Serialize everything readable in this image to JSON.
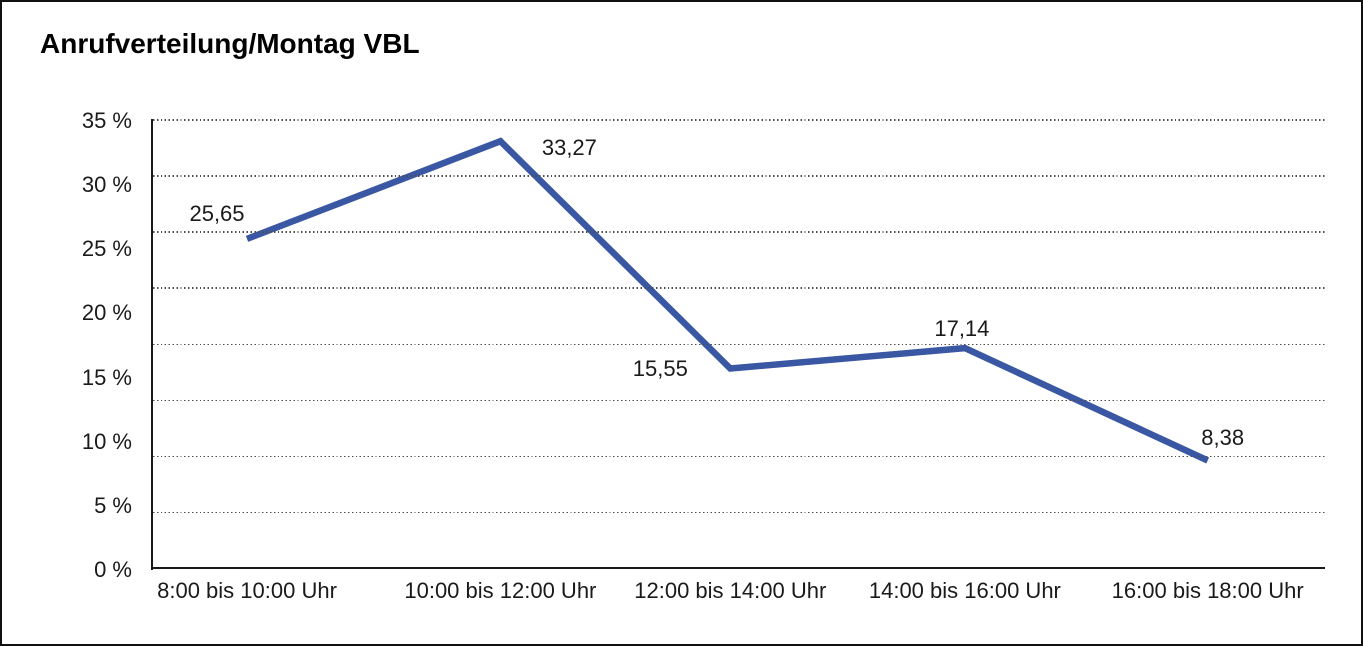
{
  "title": "Anrufverteilung/Montag VBL",
  "colors": {
    "line": "#3a57a3",
    "grid_dots": "#4d4d4d",
    "axis": "#1a1a1a",
    "text": "#000000",
    "background": "#ffffff"
  },
  "chart_data": {
    "type": "line",
    "title": "Anrufverteilung/Montag VBL",
    "categories": [
      "8:00 bis 10:00 Uhr",
      "10:00 bis 12:00 Uhr",
      "12:00 bis 14:00 Uhr",
      "14:00 bis 16:00 Uhr",
      "16:00 bis 18:00 Uhr"
    ],
    "series": [
      {
        "name": "Anrufverteilung Montag VBL",
        "values": [
          25.65,
          33.27,
          15.55,
          17.14,
          8.38
        ]
      }
    ],
    "point_labels": [
      "25,65",
      "33,27",
      "15,55",
      "17,14",
      "8,38"
    ],
    "y_tick_labels": [
      "35 %",
      "30 %",
      "25 %",
      "20 %",
      "15 %",
      "10 %",
      "5 %",
      "0 %"
    ],
    "ylim": [
      0,
      35
    ],
    "xlabel": "",
    "ylabel": "",
    "legend": "none",
    "grid": "horizontal dotted lines, 8 evenly spaced below top edge",
    "line_width": 6.5
  }
}
